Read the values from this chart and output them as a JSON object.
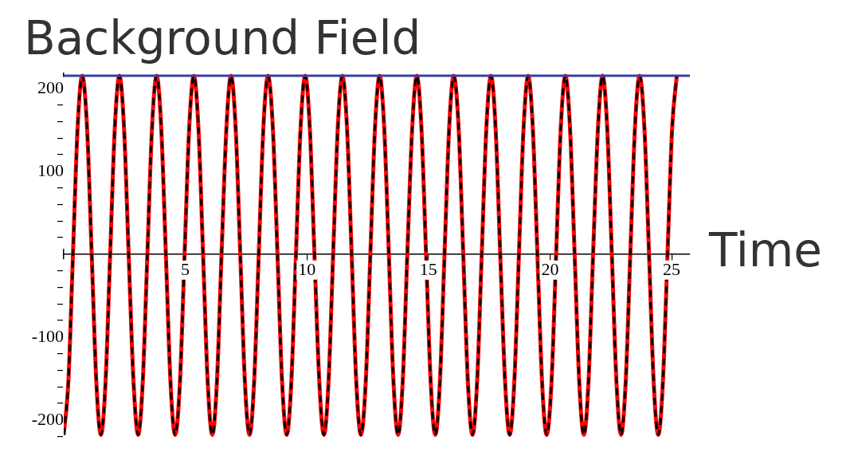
{
  "chart_data": {
    "type": "line",
    "title": "Background Field",
    "xlabel": "Time",
    "x": [
      0,
      0.19,
      0.38,
      0.57,
      0.76,
      0.96,
      1.15,
      1.34,
      1.53,
      1.72,
      1.91,
      2.1,
      2.29,
      2.48,
      2.67,
      2.87,
      3.06,
      3.25,
      3.44,
      3.63,
      3.82,
      4.01,
      4.2,
      4.39,
      4.58,
      4.78,
      4.97,
      5.16,
      5.35,
      5.54,
      5.73,
      5.92,
      6.11,
      6.3,
      6.49,
      6.69,
      6.88,
      7.07,
      7.26,
      7.45,
      7.64,
      7.83,
      8.02,
      8.21,
      8.4,
      8.6,
      8.79,
      8.98,
      9.17,
      9.36,
      9.55,
      9.74,
      9.93,
      10.12,
      10.31,
      10.51,
      10.7,
      10.89,
      11.08,
      11.27,
      11.46,
      11.65,
      11.84,
      12.03,
      12.22,
      12.42,
      12.61,
      12.8,
      12.99,
      13.18,
      13.37,
      13.56,
      13.75,
      13.94,
      14.13,
      14.33,
      14.52,
      14.71,
      14.9,
      15.09,
      15.28,
      15.47,
      15.66,
      15.85,
      16.04,
      16.24,
      16.43,
      16.62,
      16.81,
      17.0,
      17.19,
      17.38,
      17.57,
      17.76,
      17.95,
      18.15,
      18.34,
      18.53,
      18.72,
      18.91,
      19.1,
      19.29,
      19.48,
      19.67,
      19.86,
      20.06,
      20.25,
      20.44,
      20.63,
      20.82,
      21.01,
      21.2,
      21.39,
      21.58,
      21.77,
      21.97,
      22.16,
      22.35,
      22.54,
      22.73,
      22.92,
      23.11,
      23.3,
      23.49,
      23.68,
      23.88,
      24.07,
      24.26,
      24.45,
      24.64,
      24.83,
      25.02,
      25.21
    ],
    "series": [
      {
        "color": "#ff0000",
        "line_style": "solid",
        "values": [
          -218,
          -154,
          0,
          152,
          215,
          152,
          0,
          -154,
          -218,
          -154,
          0,
          152,
          215,
          152,
          0,
          -154,
          -218,
          -154,
          0,
          152,
          215,
          152,
          0,
          -154,
          -218,
          -154,
          0,
          152,
          215,
          152,
          0,
          -154,
          -218,
          -154,
          0,
          152,
          215,
          152,
          0,
          -154,
          -218,
          -154,
          0,
          152,
          215,
          152,
          0,
          -154,
          -218,
          -154,
          0,
          152,
          215,
          152,
          0,
          -154,
          -218,
          -154,
          0,
          152,
          215,
          152,
          0,
          -154,
          -218,
          -154,
          0,
          152,
          215,
          152,
          0,
          -154,
          -218,
          -154,
          0,
          152,
          215,
          152,
          0,
          -154,
          -218,
          -154,
          0,
          152,
          215,
          152,
          0,
          -154,
          -218,
          -154,
          0,
          152,
          215,
          152,
          0,
          -154,
          -218,
          -154,
          0,
          152,
          215,
          152,
          0,
          -154,
          -218,
          -154,
          0,
          152,
          215,
          152,
          0,
          -154,
          -218,
          -154,
          0,
          152,
          215,
          152,
          0,
          -154,
          -218,
          -154,
          0,
          152,
          215,
          152,
          0,
          -154,
          -218,
          -154,
          0,
          152,
          215
        ]
      },
      {
        "color": "#000000",
        "line_style": "dashed",
        "values": [
          -218,
          -154,
          0,
          152,
          215,
          152,
          0,
          -154,
          -218,
          -154,
          0,
          152,
          215,
          152,
          0,
          -154,
          -218,
          -154,
          0,
          152,
          215,
          152,
          0,
          -154,
          -218,
          -154,
          0,
          152,
          215,
          152,
          0,
          -154,
          -218,
          -154,
          0,
          152,
          215,
          152,
          0,
          -154,
          -218,
          -154,
          0,
          152,
          215,
          152,
          0,
          -154,
          -218,
          -154,
          0,
          152,
          215,
          152,
          0,
          -154,
          -218,
          -154,
          0,
          152,
          215,
          152,
          0,
          -154,
          -218,
          -154,
          0,
          152,
          215,
          152,
          0,
          -154,
          -218,
          -154,
          0,
          152,
          215,
          152,
          0,
          -154,
          -218,
          -154,
          0,
          152,
          215,
          152,
          0,
          -154,
          -218,
          -154,
          0,
          152,
          215,
          152,
          0,
          -154,
          -218,
          -154,
          0,
          152,
          215,
          152,
          0,
          -154,
          -218,
          -154,
          0,
          152,
          215,
          152,
          0,
          -154,
          -218,
          -154,
          0,
          152,
          215,
          152,
          0,
          -154,
          -218,
          -154,
          0,
          152,
          215,
          152,
          0,
          -154,
          -218,
          -154,
          0,
          152,
          215
        ]
      }
    ],
    "xlim": [
      0,
      25.75
    ],
    "xticks": [
      5,
      10,
      15,
      20,
      25
    ],
    "ylim": [
      -225,
      218
    ],
    "yticks": [
      {
        "value": -220,
        "label": null
      },
      -200,
      {
        "value": -180,
        "label": null
      },
      {
        "value": -160,
        "label": null
      },
      {
        "value": -140,
        "label": null
      },
      {
        "value": -120,
        "label": null
      },
      -100,
      {
        "value": -80,
        "label": null
      },
      {
        "value": -60,
        "label": null
      },
      {
        "value": -40,
        "label": null
      },
      {
        "value": -20,
        "label": null
      },
      {
        "value": 20,
        "label": null
      },
      {
        "value": 40,
        "label": null
      },
      {
        "value": 60,
        "label": null
      },
      {
        "value": 80,
        "label": null
      },
      100,
      {
        "value": 120,
        "label": null
      },
      {
        "value": 140,
        "label": null
      },
      {
        "value": 160,
        "label": null
      },
      {
        "value": 180,
        "label": null
      },
      200
    ],
    "ref_lines": [
      {
        "axis": "y",
        "value": 215,
        "color": "#3a3fa0"
      }
    ],
    "legend": false,
    "marker": "none"
  }
}
